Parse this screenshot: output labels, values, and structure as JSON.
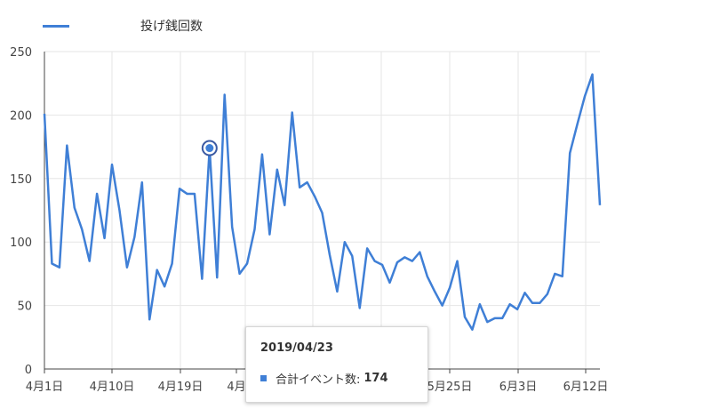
{
  "chart_data": {
    "type": "line",
    "legend": "投げ銭回数",
    "ylim": [
      0,
      250
    ],
    "yticks": [
      "0",
      "50",
      "100",
      "150",
      "200",
      "250"
    ],
    "xticks": [
      "4月1日",
      "4月10日",
      "4月19日",
      "4月",
      "5月25日",
      "6月3日",
      "6月12日"
    ],
    "series": [
      {
        "name": "投げ銭回数",
        "color": "#3f7fd6",
        "values": [
          201,
          83,
          80,
          176,
          127,
          110,
          85,
          138,
          103,
          161,
          125,
          80,
          104,
          147,
          39,
          78,
          65,
          83,
          142,
          138,
          138,
          71,
          174,
          72,
          216,
          112,
          75,
          83,
          110,
          169,
          106,
          157,
          129,
          202,
          143,
          147,
          136,
          123,
          90,
          61,
          100,
          89,
          48,
          95,
          85,
          82,
          68,
          84,
          88,
          85,
          92,
          73,
          61,
          50,
          64,
          85,
          41,
          31,
          51,
          37,
          40,
          40,
          51,
          47,
          60,
          52,
          52,
          59,
          75,
          73,
          170,
          193,
          215,
          232,
          129
        ],
        "highlight_index": 22
      }
    ],
    "tooltip": {
      "date": "2019/04/23",
      "label": "合計イベント数:",
      "value": "174"
    }
  }
}
